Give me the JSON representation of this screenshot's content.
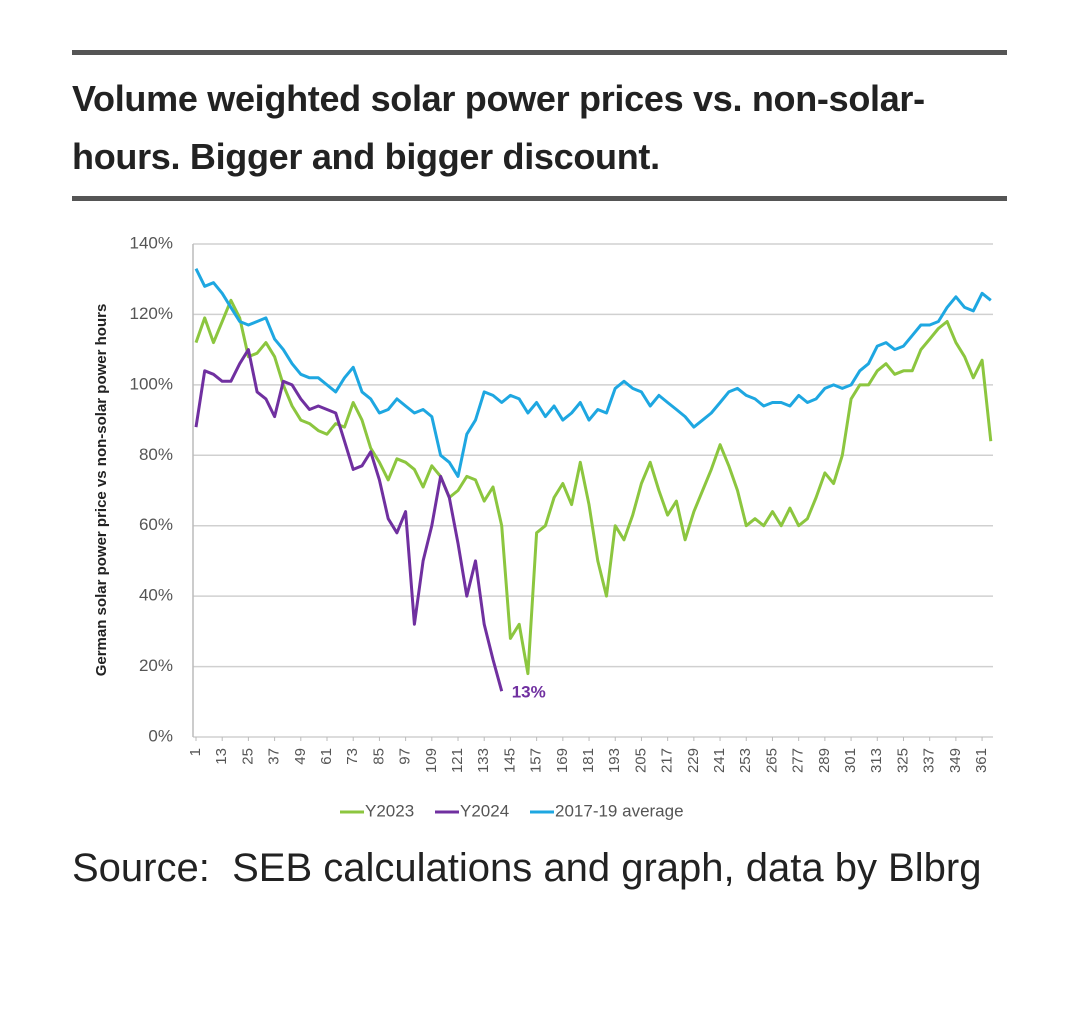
{
  "chart_data": {
    "type": "line",
    "title": "Volume weighted solar power prices vs. non-solar-hours. Bigger and bigger discount.",
    "ylabel": "German solar power price vs non-solar power hours",
    "source": "Source:  SEB calculations and graph, data by Blbrg",
    "x": [
      1,
      5,
      9,
      13,
      17,
      21,
      25,
      29,
      33,
      37,
      41,
      45,
      49,
      53,
      57,
      61,
      65,
      69,
      73,
      77,
      81,
      85,
      89,
      93,
      97,
      101,
      105,
      109,
      113,
      117,
      121,
      125,
      129,
      133,
      137,
      141,
      145,
      149,
      153,
      157,
      161,
      165,
      169,
      173,
      177,
      181,
      185,
      189,
      193,
      197,
      201,
      205,
      209,
      213,
      217,
      221,
      225,
      229,
      233,
      237,
      241,
      245,
      249,
      253,
      257,
      261,
      265,
      269,
      273,
      277,
      281,
      285,
      289,
      293,
      297,
      301,
      305,
      309,
      313,
      317,
      321,
      325,
      329,
      333,
      337,
      341,
      345,
      349,
      353,
      357,
      361,
      365
    ],
    "series": [
      {
        "name": "Y2023",
        "color": "#8cc63f",
        "values": [
          112,
          119,
          112,
          118,
          124,
          119,
          108,
          109,
          112,
          108,
          100,
          94,
          90,
          89,
          87,
          86,
          89,
          88,
          95,
          90,
          82,
          78,
          73,
          79,
          78,
          76,
          71,
          77,
          74,
          68,
          70,
          74,
          73,
          67,
          71,
          60,
          28,
          32,
          18,
          58,
          60,
          68,
          72,
          66,
          78,
          66,
          50,
          40,
          60,
          56,
          63,
          72,
          78,
          70,
          63,
          67,
          56,
          64,
          70,
          76,
          83,
          77,
          70,
          60,
          62,
          60,
          64,
          60,
          65,
          60,
          62,
          68,
          75,
          72,
          80,
          96,
          100,
          100,
          104,
          106,
          103,
          104,
          104,
          110,
          113,
          116,
          118,
          112,
          108,
          102,
          107,
          84
        ]
      },
      {
        "name": "Y2024",
        "color": "#7030a0",
        "values": [
          88,
          104,
          103,
          101,
          101,
          106,
          110,
          98,
          96,
          91,
          101,
          100,
          96,
          93,
          94,
          93,
          92,
          84,
          76,
          77,
          81,
          73,
          62,
          58,
          64,
          32,
          50,
          60,
          74,
          68,
          55,
          40,
          50,
          32,
          22,
          13,
          null,
          null,
          null,
          null,
          null,
          null,
          null,
          null,
          null,
          null,
          null,
          null,
          null,
          null,
          null,
          null,
          null,
          null,
          null,
          null,
          null,
          null,
          null,
          null,
          null,
          null,
          null,
          null,
          null,
          null,
          null,
          null,
          null,
          null,
          null,
          null,
          null,
          null,
          null,
          null,
          null,
          null,
          null,
          null,
          null,
          null,
          null,
          null,
          null,
          null,
          null,
          null,
          null,
          null,
          null,
          null
        ]
      },
      {
        "name": "2017-19 average",
        "color": "#1ea7e1",
        "values": [
          133,
          128,
          129,
          126,
          122,
          118,
          117,
          118,
          119,
          113,
          110,
          106,
          103,
          102,
          102,
          100,
          98,
          102,
          105,
          98,
          96,
          92,
          93,
          96,
          94,
          92,
          93,
          91,
          80,
          78,
          74,
          86,
          90,
          98,
          97,
          95,
          97,
          96,
          92,
          95,
          91,
          94,
          90,
          92,
          95,
          90,
          93,
          92,
          99,
          101,
          99,
          98,
          94,
          97,
          95,
          93,
          91,
          88,
          90,
          92,
          95,
          98,
          99,
          97,
          96,
          94,
          95,
          95,
          94,
          97,
          95,
          96,
          99,
          100,
          99,
          100,
          104,
          106,
          111,
          112,
          110,
          111,
          114,
          117,
          117,
          118,
          122,
          125,
          122,
          121,
          126,
          124
        ]
      }
    ],
    "annotations": [
      {
        "value": 13,
        "label": "13%"
      }
    ],
    "xlim": [
      1,
      366
    ],
    "xticks": [
      1,
      13,
      25,
      37,
      49,
      61,
      73,
      85,
      97,
      109,
      121,
      133,
      145,
      157,
      169,
      181,
      193,
      205,
      217,
      229,
      241,
      253,
      265,
      277,
      289,
      301,
      313,
      325,
      337,
      349,
      361
    ],
    "ylim": [
      0,
      140
    ],
    "yticks": [
      {
        "value": 0,
        "label": "0%"
      },
      {
        "value": 20,
        "label": "20%"
      },
      {
        "value": 40,
        "label": "40%"
      },
      {
        "value": 60,
        "label": "60%"
      },
      {
        "value": 80,
        "label": "80%"
      },
      {
        "value": 100,
        "label": "100%"
      },
      {
        "value": 120,
        "label": "120%"
      },
      {
        "value": 140,
        "label": "140%"
      }
    ],
    "grid": true,
    "legend": "bottom"
  }
}
